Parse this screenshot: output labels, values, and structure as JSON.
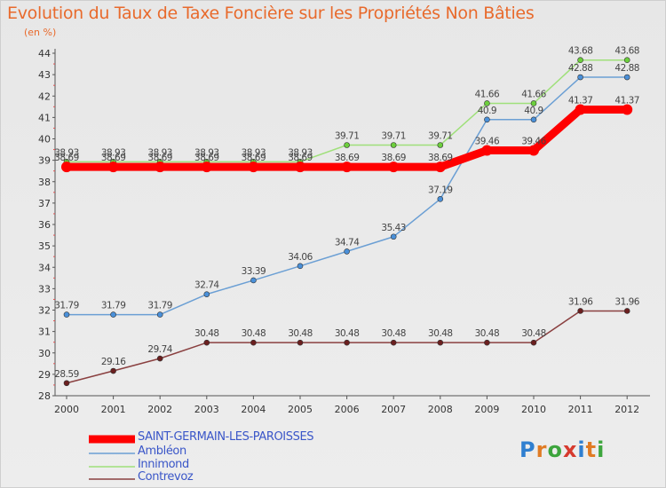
{
  "title": "Evolution du Taux de Taxe Foncière sur les Propriétés Non Bâties",
  "unit_label": "(en %)",
  "logo": {
    "letters": [
      "P",
      "r",
      "o",
      "x",
      "i",
      "t",
      "i"
    ],
    "colors": [
      "#2f7fd0",
      "#e07b24",
      "#3da53d",
      "#d63a2e",
      "#2f7fd0",
      "#e07b24",
      "#3da53d"
    ]
  },
  "chart_data": {
    "type": "line",
    "x": [
      "2000",
      "2001",
      "2002",
      "2003",
      "2004",
      "2005",
      "2006",
      "2007",
      "2008",
      "2009",
      "2010",
      "2011",
      "2012"
    ],
    "ylim": [
      28,
      44
    ],
    "yticks": [
      28,
      29,
      30,
      31,
      32,
      33,
      34,
      35,
      36,
      37,
      38,
      39,
      40,
      41,
      42,
      43,
      44
    ],
    "grid": false,
    "legend_position": "bottom-left",
    "series": [
      {
        "name": "SAINT-GERMAIN-LES-PAROISSES",
        "color": "#ff0000",
        "style": "thick",
        "values": [
          38.69,
          38.69,
          38.69,
          38.69,
          38.69,
          38.69,
          38.69,
          38.69,
          38.69,
          39.46,
          39.46,
          41.37,
          41.37
        ],
        "labels": [
          "38.69",
          "38.69",
          "38.69",
          "38.69",
          "38.69",
          "38.69",
          "38.69",
          "38.69",
          "38.69",
          "39.46",
          "39.46",
          "41.37",
          "41.37"
        ]
      },
      {
        "name": "Ambléon",
        "color": "#6b9fd4",
        "marker": "#4a90d9",
        "values": [
          31.79,
          31.79,
          31.79,
          32.74,
          33.39,
          34.06,
          34.74,
          35.43,
          37.19,
          40.9,
          40.9,
          42.88,
          42.88
        ],
        "labels": [
          "31.79",
          "31.79",
          "31.79",
          "32.74",
          "33.39",
          "34.06",
          "34.74",
          "35.43",
          "37.19",
          "40.9",
          "40.9",
          "42.88",
          "42.88"
        ]
      },
      {
        "name": "Innimond",
        "color": "#9fe07a",
        "marker": "#6ccf3c",
        "values": [
          38.93,
          38.93,
          38.93,
          38.93,
          38.93,
          38.93,
          39.71,
          39.71,
          39.71,
          41.66,
          41.66,
          43.68,
          43.68
        ],
        "labels": [
          "38.93",
          "38.93",
          "38.93",
          "38.93",
          "38.93",
          "38.93",
          "39.71",
          "39.71",
          "39.71",
          "41.66",
          "41.66",
          "43.68",
          "43.68"
        ]
      },
      {
        "name": "Contrevoz",
        "color": "#8a4040",
        "marker": "#6b1f1f",
        "values": [
          28.59,
          29.16,
          29.74,
          30.48,
          30.48,
          30.48,
          30.48,
          30.48,
          30.48,
          30.48,
          30.48,
          31.96,
          31.96
        ],
        "labels": [
          "28.59",
          "29.16",
          "29.74",
          "30.48",
          "30.48",
          "30.48",
          "30.48",
          "30.48",
          "30.48",
          "30.48",
          "30.48",
          "31.96",
          "31.96"
        ]
      }
    ]
  }
}
